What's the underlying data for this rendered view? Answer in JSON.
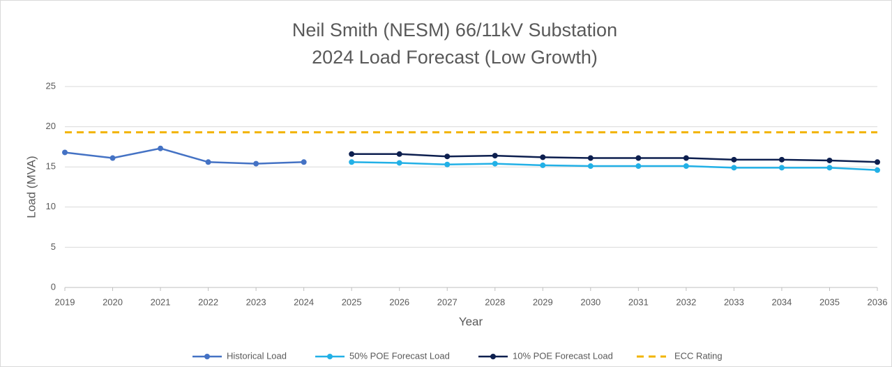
{
  "chart_data": {
    "type": "line",
    "title": "Neil Smith (NESM) 66/11kV Substation",
    "subtitle": "2024 Load Forecast (Low Growth)",
    "x_label": "Year",
    "y_label": "Load (MVA)",
    "categories": [
      "2019",
      "2020",
      "2021",
      "2022",
      "2023",
      "2024",
      "2025",
      "2026",
      "2027",
      "2028",
      "2029",
      "2030",
      "2031",
      "2032",
      "2033",
      "2034",
      "2035",
      "2036"
    ],
    "series": [
      {
        "name": "Historical Load",
        "color": "#4472c4",
        "markers": true,
        "dashed": false,
        "values": [
          16.8,
          16.1,
          17.3,
          15.6,
          15.4,
          15.6,
          null,
          null,
          null,
          null,
          null,
          null,
          null,
          null,
          null,
          null,
          null,
          null
        ]
      },
      {
        "name": "50% POE Forecast Load",
        "color": "#22b0e6",
        "markers": true,
        "dashed": false,
        "values": [
          null,
          null,
          null,
          null,
          null,
          null,
          15.6,
          15.5,
          15.3,
          15.4,
          15.2,
          15.1,
          15.1,
          15.1,
          14.9,
          14.9,
          14.9,
          14.6
        ]
      },
      {
        "name": "10% POE Forecast Load",
        "color": "#0d1f4f",
        "markers": true,
        "dashed": false,
        "values": [
          null,
          null,
          null,
          null,
          null,
          null,
          16.6,
          16.6,
          16.3,
          16.4,
          16.2,
          16.1,
          16.1,
          16.1,
          15.9,
          15.9,
          15.8,
          15.6
        ]
      },
      {
        "name": "ECC Rating",
        "color": "#f2b400",
        "markers": false,
        "dashed": true,
        "values": [
          19.3,
          19.3,
          19.3,
          19.3,
          19.3,
          19.3,
          19.3,
          19.3,
          19.3,
          19.3,
          19.3,
          19.3,
          19.3,
          19.3,
          19.3,
          19.3,
          19.3,
          19.3
        ]
      }
    ],
    "ylim": [
      0,
      25
    ],
    "yticks": [
      0,
      5,
      10,
      15,
      20,
      25
    ],
    "grid": true,
    "legend": "bottom"
  }
}
